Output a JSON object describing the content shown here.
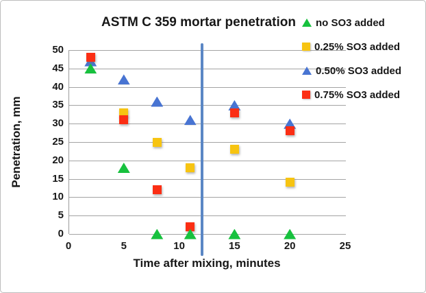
{
  "chart_data": {
    "type": "scatter",
    "title": "ASTM C 359 mortar penetration",
    "xlabel": "Time after mixing, minutes",
    "ylabel": "Penetration, mm",
    "xlim": [
      0,
      25
    ],
    "ylim": [
      0,
      50
    ],
    "x_ticks": [
      0,
      5,
      10,
      15,
      20,
      25
    ],
    "y_ticks": [
      0,
      5,
      10,
      15,
      20,
      25,
      30,
      35,
      40,
      45,
      50
    ],
    "grid": "horizontal-only",
    "gridline_color": "#a3a3a3",
    "legend_position": "top-right-outside",
    "annotation_line": {
      "axis": "x",
      "value": 12,
      "color": "#5b87c5"
    },
    "series": [
      {
        "name": "no SO3 added",
        "marker": "triangle",
        "color": "#17c13e",
        "z": 4,
        "points": [
          [
            2,
            45
          ],
          [
            5,
            18
          ],
          [
            8,
            0
          ],
          [
            11,
            0
          ],
          [
            15,
            0
          ],
          [
            20,
            0
          ]
        ]
      },
      {
        "name": "0.25% SO3 added",
        "marker": "square",
        "color": "#f7c411",
        "z": 1,
        "points": [
          [
            5,
            33
          ],
          [
            8,
            25
          ],
          [
            11,
            18
          ],
          [
            15,
            23
          ],
          [
            20,
            14
          ]
        ]
      },
      {
        "name": "0.50% SO3 added",
        "marker": "triangle",
        "color": "#4874d2",
        "z": 2,
        "points": [
          [
            2,
            47
          ],
          [
            5,
            42
          ],
          [
            8,
            36
          ],
          [
            11,
            31
          ],
          [
            15,
            35
          ],
          [
            20,
            30
          ]
        ]
      },
      {
        "name": "0.75% SO3 added",
        "marker": "square",
        "color": "#fb2e14",
        "z": 3,
        "points": [
          [
            2,
            48
          ],
          [
            5,
            31
          ],
          [
            8,
            12
          ],
          [
            11,
            2
          ],
          [
            15,
            33
          ],
          [
            20,
            28
          ]
        ]
      }
    ]
  }
}
